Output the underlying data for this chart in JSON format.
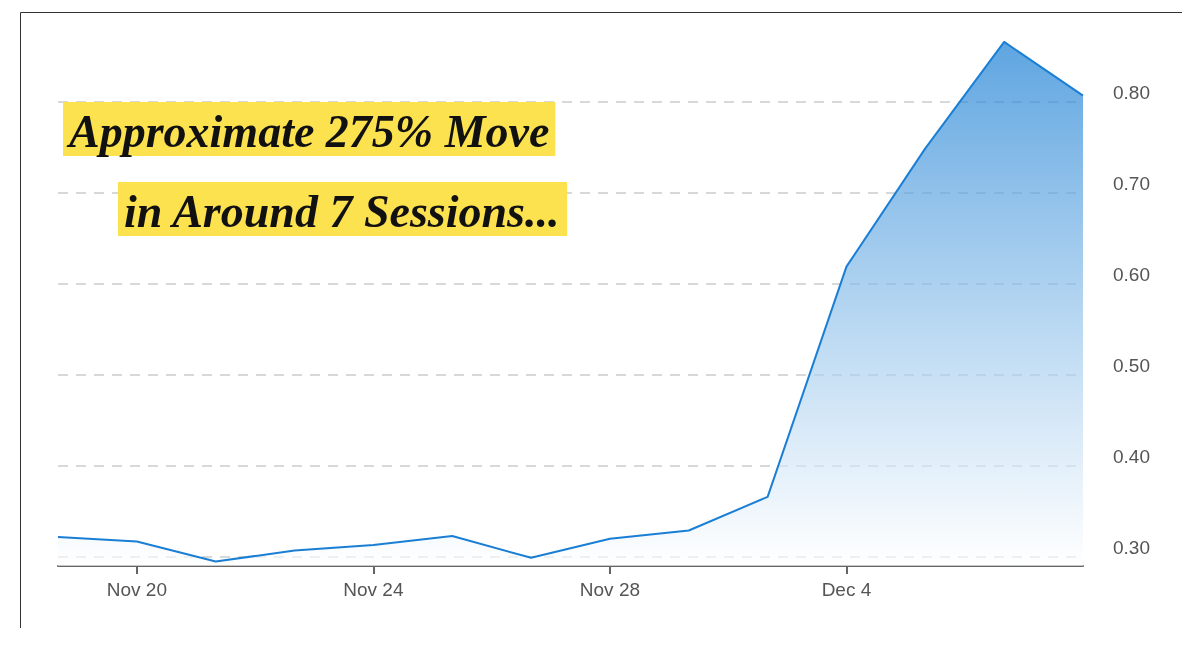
{
  "chart_data": {
    "type": "area",
    "categories": [
      null,
      "Nov 20",
      null,
      null,
      "Nov 24",
      null,
      null,
      "Nov 28",
      null,
      null,
      "Dec 4",
      null,
      null,
      null
    ],
    "series": [
      {
        "color": "#1a7fd4",
        "values": [
          0.322,
          0.317,
          0.295,
          0.307,
          0.313,
          0.323,
          0.299,
          0.32,
          0.329,
          0.366,
          0.619,
          0.749,
          0.866,
          0.807
        ]
      }
    ],
    "ylim": [
      0.29,
      0.9
    ],
    "yticks": [
      {
        "value": 0.3,
        "label": "0.30"
      },
      {
        "value": 0.4,
        "label": "0.40"
      },
      {
        "value": 0.5,
        "label": "0.50"
      },
      {
        "value": 0.6,
        "label": "0.60"
      },
      {
        "value": 0.7,
        "label": "0.70"
      },
      {
        "value": 0.8,
        "label": "0.80"
      }
    ],
    "grid": "y",
    "marker": "none",
    "line_style": "solid",
    "annotations": [
      "Approximate 275% Move",
      "in Around 7 Sessions..."
    ]
  }
}
